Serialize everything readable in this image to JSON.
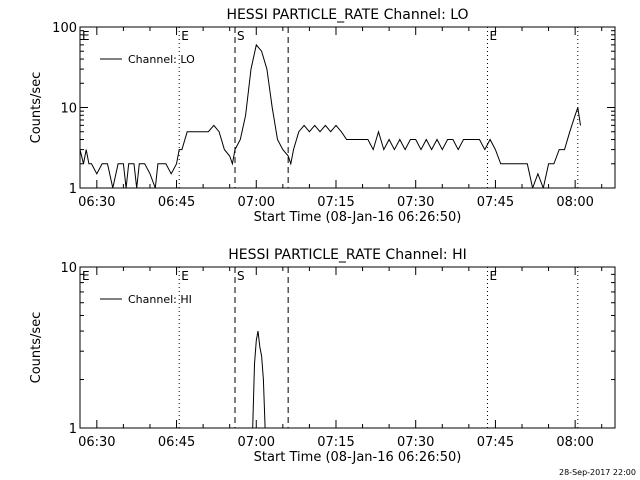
{
  "footer_stamp": "28-Sep-2017 22:00",
  "chart_data": [
    {
      "type": "line",
      "title": "HESSI PARTICLE_RATE Channel: LO",
      "xlabel": "Start Time (08-Jan-16 06:26:50)",
      "ylabel": "Counts/sec",
      "yscale": "log",
      "ylim": [
        1,
        100
      ],
      "y_tick_labels": [
        "1",
        "10",
        "100"
      ],
      "xlim": [
        "06:26:50",
        "08:07:30"
      ],
      "x_tick_labels": [
        "06:30",
        "06:45",
        "07:00",
        "07:15",
        "07:30",
        "07:45",
        "08:00"
      ],
      "legend": {
        "position": "top-left",
        "entries": [
          "Channel: LO"
        ]
      },
      "markers": [
        {
          "time": "06:45:30",
          "label": "E",
          "style": "dotted"
        },
        {
          "time": "06:56:00",
          "label": "S",
          "style": "dashed"
        },
        {
          "time": "07:06:00",
          "label": "",
          "style": "dashed"
        },
        {
          "time": "07:43:30",
          "label": "E",
          "style": "dotted"
        },
        {
          "time": "08:00:30",
          "label": "",
          "style": "dotted"
        }
      ],
      "series": [
        {
          "name": "Channel: LO",
          "x": [
            "06:26:50",
            "06:27:30",
            "06:28:00",
            "06:28:30",
            "06:29:00",
            "06:30:00",
            "06:31:00",
            "06:32:00",
            "06:33:00",
            "06:34:00",
            "06:35:00",
            "06:35:30",
            "06:36:00",
            "06:37:00",
            "06:37:30",
            "06:38:00",
            "06:39:00",
            "06:40:00",
            "06:41:00",
            "06:41:30",
            "06:42:00",
            "06:43:00",
            "06:44:00",
            "06:45:00",
            "06:45:30",
            "06:46:00",
            "06:47:00",
            "06:48:00",
            "06:49:00",
            "06:50:00",
            "06:51:00",
            "06:52:00",
            "06:53:00",
            "06:54:00",
            "06:55:00",
            "06:55:30",
            "06:56:00",
            "06:57:00",
            "06:58:00",
            "06:59:00",
            "07:00:00",
            "07:01:00",
            "07:02:00",
            "07:03:00",
            "07:04:00",
            "07:05:00",
            "07:06:00",
            "07:06:30",
            "07:07:00",
            "07:08:00",
            "07:09:00",
            "07:10:00",
            "07:11:00",
            "07:12:00",
            "07:13:00",
            "07:14:00",
            "07:15:00",
            "07:16:00",
            "07:17:00",
            "07:18:00",
            "07:19:00",
            "07:20:00",
            "07:21:00",
            "07:22:00",
            "07:23:00",
            "07:24:00",
            "07:25:00",
            "07:26:00",
            "07:27:00",
            "07:28:00",
            "07:29:00",
            "07:30:00",
            "07:31:00",
            "07:32:00",
            "07:33:00",
            "07:34:00",
            "07:35:00",
            "07:36:00",
            "07:37:00",
            "07:38:00",
            "07:39:00",
            "07:40:00",
            "07:41:00",
            "07:42:00",
            "07:43:00",
            "07:44:00",
            "07:45:00",
            "07:46:00",
            "07:47:00",
            "07:48:00",
            "07:49:00",
            "07:50:00",
            "07:51:00",
            "07:52:00",
            "07:53:00",
            "07:54:00",
            "07:55:00",
            "07:56:00",
            "07:57:00",
            "07:58:00",
            "07:59:00",
            "08:00:00",
            "08:00:30",
            "08:01:00"
          ],
          "values": [
            3,
            2,
            3,
            2,
            2,
            1.5,
            2,
            2,
            1,
            2,
            2,
            1,
            2,
            2,
            1,
            2,
            2,
            1.5,
            1,
            2,
            2,
            2,
            1.5,
            2,
            3,
            3,
            5,
            5,
            5,
            5,
            5,
            6,
            5,
            3,
            2.5,
            2,
            3,
            4,
            8,
            30,
            60,
            50,
            30,
            10,
            4,
            3,
            2.5,
            2,
            3,
            5,
            6,
            5,
            6,
            5,
            6,
            5,
            6,
            5,
            4,
            4,
            4,
            4,
            4,
            3,
            5,
            3,
            4,
            3,
            4,
            3,
            4,
            4,
            3,
            4,
            3,
            4,
            3,
            4,
            4,
            3,
            4,
            4,
            4,
            4,
            3,
            4,
            3,
            2,
            2,
            2,
            2,
            2,
            2,
            1,
            1.5,
            1,
            2,
            2,
            3,
            3,
            5,
            8,
            10,
            6
          ]
        }
      ]
    },
    {
      "type": "line",
      "title": "HESSI PARTICLE_RATE Channel: HI",
      "xlabel": "Start Time (08-Jan-16 06:26:50)",
      "ylabel": "Counts/sec",
      "yscale": "log",
      "ylim": [
        1,
        10
      ],
      "y_tick_labels": [
        "1",
        "10"
      ],
      "xlim": [
        "06:26:50",
        "08:07:30"
      ],
      "x_tick_labels": [
        "06:30",
        "06:45",
        "07:00",
        "07:15",
        "07:30",
        "07:45",
        "08:00"
      ],
      "legend": {
        "position": "top-left",
        "entries": [
          "Channel: HI"
        ]
      },
      "markers": [
        {
          "time": "06:45:30",
          "label": "E",
          "style": "dotted"
        },
        {
          "time": "06:56:00",
          "label": "S",
          "style": "dashed"
        },
        {
          "time": "07:06:00",
          "label": "",
          "style": "dashed"
        },
        {
          "time": "07:43:30",
          "label": "E",
          "style": "dotted"
        },
        {
          "time": "08:00:30",
          "label": "",
          "style": "dotted"
        }
      ],
      "series": [
        {
          "name": "Channel: HI",
          "x": [
            "06:59:20",
            "06:59:40",
            "07:00:00",
            "07:00:20",
            "07:00:40",
            "07:01:00",
            "07:01:20",
            "07:01:40"
          ],
          "values": [
            1,
            2.5,
            3.5,
            4,
            3.2,
            2.8,
            2,
            1
          ]
        }
      ]
    }
  ]
}
